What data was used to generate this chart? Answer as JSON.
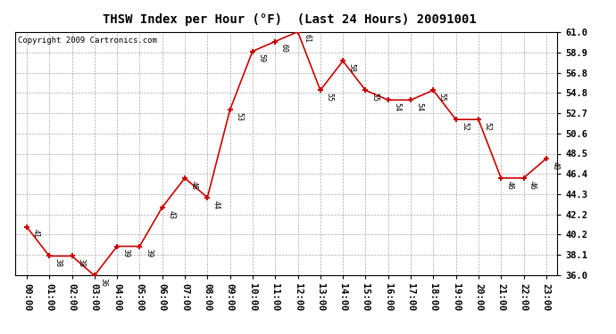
{
  "title": "THSW Index per Hour (°F)  (Last 24 Hours) 20091001",
  "copyright": "Copyright 2009 Cartronics.com",
  "hours": [
    "00:00",
    "01:00",
    "02:00",
    "03:00",
    "04:00",
    "05:00",
    "06:00",
    "07:00",
    "08:00",
    "09:00",
    "10:00",
    "11:00",
    "12:00",
    "13:00",
    "14:00",
    "15:00",
    "16:00",
    "17:00",
    "18:00",
    "19:00",
    "20:00",
    "21:00",
    "22:00",
    "23:00"
  ],
  "values": [
    41,
    38,
    38,
    36,
    39,
    39,
    43,
    46,
    44,
    53,
    59,
    60,
    61,
    55,
    58,
    55,
    54,
    54,
    55,
    52,
    52,
    46,
    46,
    48
  ],
  "ylim_min": 36.0,
  "ylim_max": 61.0,
  "yticks": [
    36.0,
    38.1,
    40.2,
    42.2,
    44.3,
    46.4,
    48.5,
    50.6,
    52.7,
    54.8,
    56.8,
    58.9,
    61.0
  ],
  "line_color": "#cc0000",
  "marker_color": "#cc0000",
  "bg_color": "#ffffff",
  "plot_bg_color": "#ffffff",
  "grid_color": "#aaaaaa",
  "title_fontsize": 10,
  "label_fontsize": 6,
  "tick_fontsize": 7.5,
  "copyright_fontsize": 6.5
}
